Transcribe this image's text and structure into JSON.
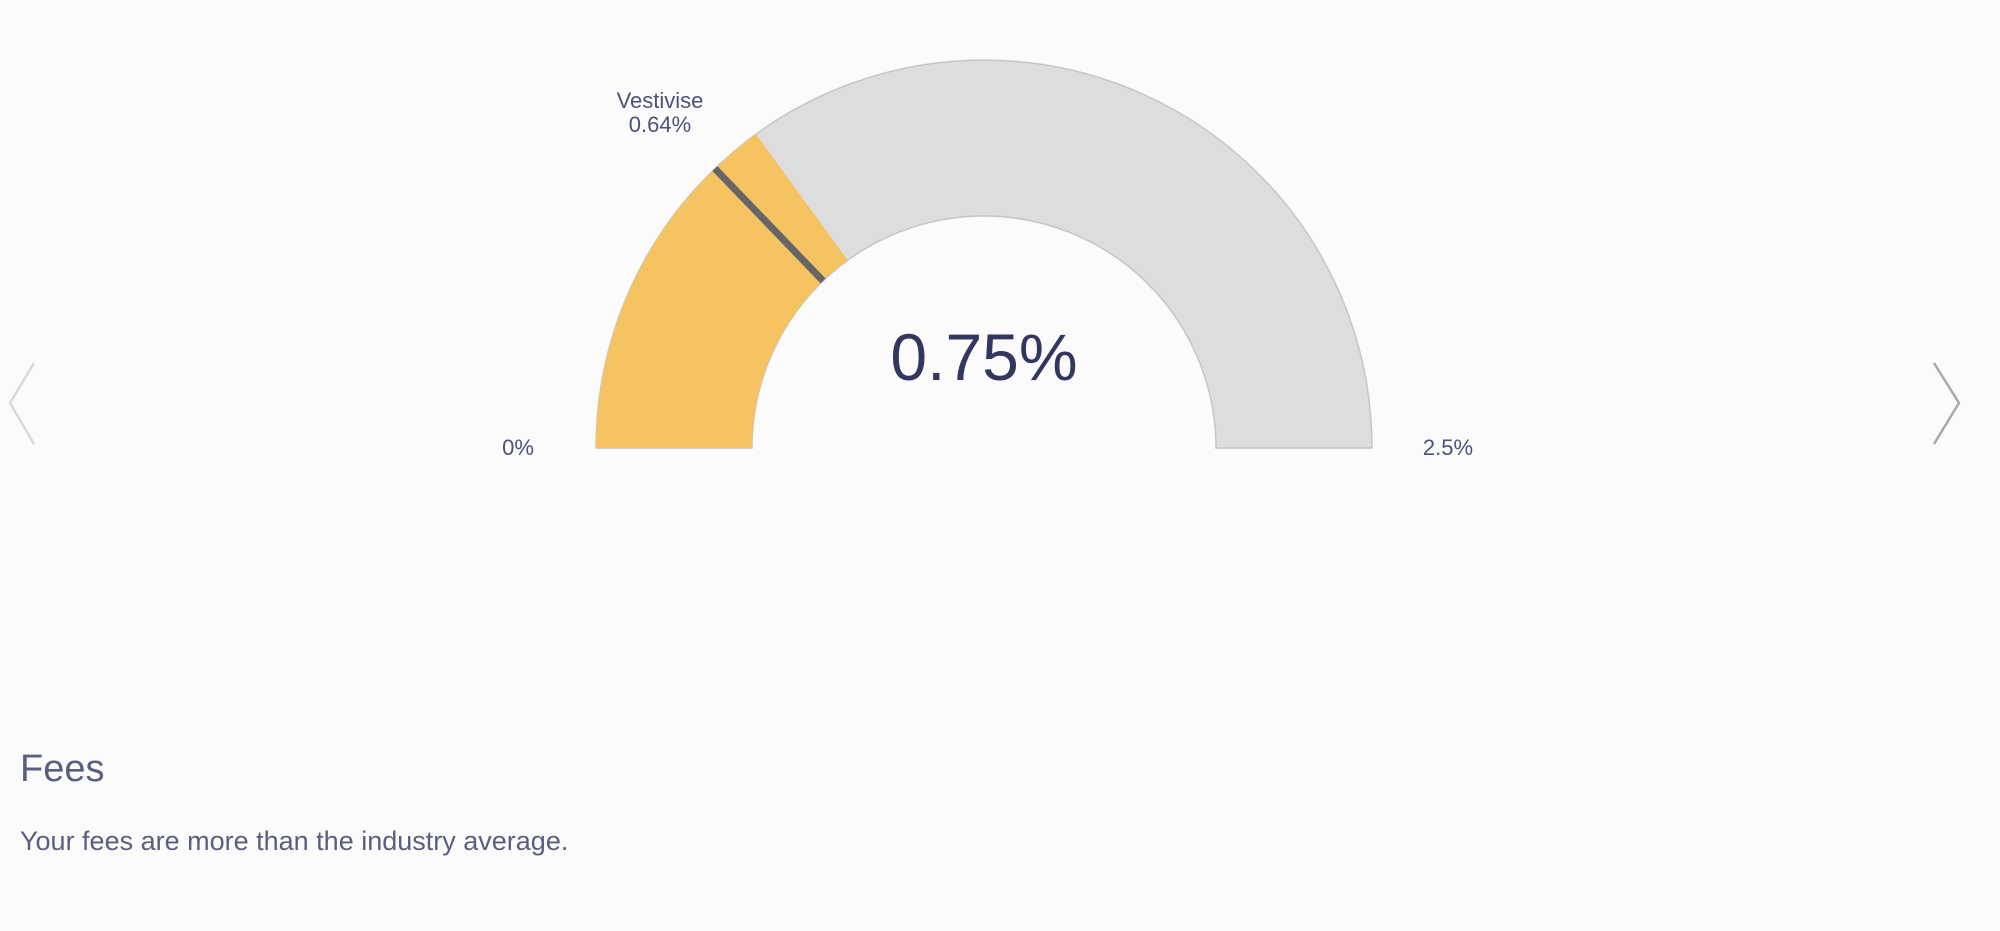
{
  "gauge": {
    "value": 0.75,
    "value_label": "0.75%",
    "min": 0,
    "max": 2.5,
    "min_label": "0%",
    "max_label": "2.5%",
    "marker": {
      "name": "Vestivise",
      "value": 0.64,
      "value_label": "0.64%"
    },
    "colors": {
      "fill": "#f5c362",
      "track": "#dddddd",
      "marker": "#666666",
      "text": "#33365e",
      "label": "#4e527a"
    }
  },
  "navigation": {
    "prev_icon": "chevron-left-icon",
    "next_icon": "chevron-right-icon"
  },
  "section": {
    "title": "Fees",
    "description": "Your fees are more than the industry average."
  }
}
